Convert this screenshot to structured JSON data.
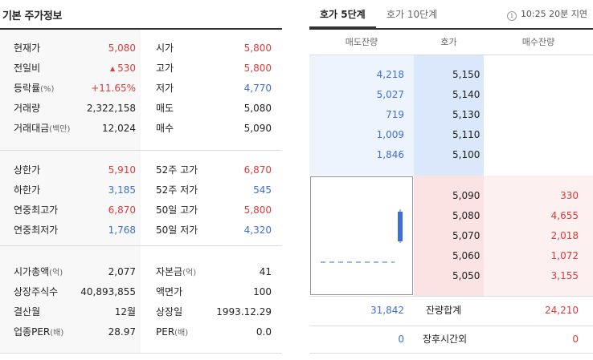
{
  "stock_info": {
    "title": "기본 주가정보",
    "section1": [
      {
        "label": "현재가",
        "value": "5,080",
        "label2": "시가",
        "value2": "5,800"
      },
      {
        "label": "전일비",
        "value": "530",
        "label2": "고가",
        "value2": "5,800"
      },
      {
        "label": "등락률",
        "unit": "(%)",
        "value": "+11.65%",
        "label2": "저가",
        "value2": "4,770"
      },
      {
        "label": "거래량",
        "value": "2,322,158",
        "label2": "매도",
        "value2": "5,080"
      },
      {
        "label": "거래대금",
        "unit": "(백만)",
        "value": "12,024",
        "label2": "매수",
        "value2": "5,090"
      }
    ],
    "section2": [
      {
        "label": "상한가",
        "value": "5,910",
        "label2": "52주 고가",
        "value2": "6,870"
      },
      {
        "label": "하한가",
        "value": "3,185",
        "label2": "52주 저가",
        "value2": "545"
      },
      {
        "label": "연중최고가",
        "value": "6,870",
        "label2": "50일 고가",
        "value2": "5,800"
      },
      {
        "label": "연중최저가",
        "value": "1,768",
        "label2": "50일 저가",
        "value2": "4,320"
      }
    ],
    "section3": [
      {
        "label": "시가총액",
        "unit": "(억)",
        "value": "2,077",
        "label2": "자본금",
        "unit2": "(억)",
        "value2": "41"
      },
      {
        "label": "상장주식수",
        "value": "40,893,855",
        "label2": "액면가",
        "value2": "100"
      },
      {
        "label": "결산월",
        "value": "12월",
        "label2": "상장일",
        "value2": "1993.12.29"
      },
      {
        "label": "업종PER",
        "unit": "(배)",
        "value": "28.97",
        "label2": "PER",
        "unit2": "(배)",
        "value2": "0.0"
      }
    ],
    "change_icon": "triangle-up-icon",
    "colors": {
      "up": "#e03a3a",
      "down": "#3d6fd6"
    }
  },
  "orderbook": {
    "tabs": {
      "active": "호가 5단계",
      "inactive": "호가 10단계"
    },
    "delay_text": "10:25 20분 지연",
    "delay_icon": "info-icon",
    "headers": {
      "ask": "매도잔량",
      "price": "호가",
      "bid": "매수잔량"
    },
    "asks": [
      {
        "volume": "4,218",
        "price": "5,150"
      },
      {
        "volume": "5,027",
        "price": "5,140"
      },
      {
        "volume": "719",
        "price": "5,130"
      },
      {
        "volume": "1,009",
        "price": "5,110"
      },
      {
        "volume": "1,846",
        "price": "5,100"
      }
    ],
    "bids": [
      {
        "price": "5,090",
        "volume": "330"
      },
      {
        "price": "5,080",
        "volume": "4,655"
      },
      {
        "price": "5,070",
        "volume": "2,018"
      },
      {
        "price": "5,060",
        "volume": "1,072"
      },
      {
        "price": "5,050",
        "volume": "3,155"
      }
    ],
    "total": {
      "ask": "31,842",
      "label": "잔량합계",
      "bid": "24,210"
    },
    "after_hours": {
      "ask": "0",
      "label": "장후시간외",
      "bid": "0"
    },
    "colors": {
      "ask_bg": "#eef4fd",
      "ask_price_bg": "#dbe7fb",
      "bid_price_bg": "#fbe3e3",
      "bid_bg": "#fdf0f0",
      "candle": "#3d6fd6"
    }
  }
}
